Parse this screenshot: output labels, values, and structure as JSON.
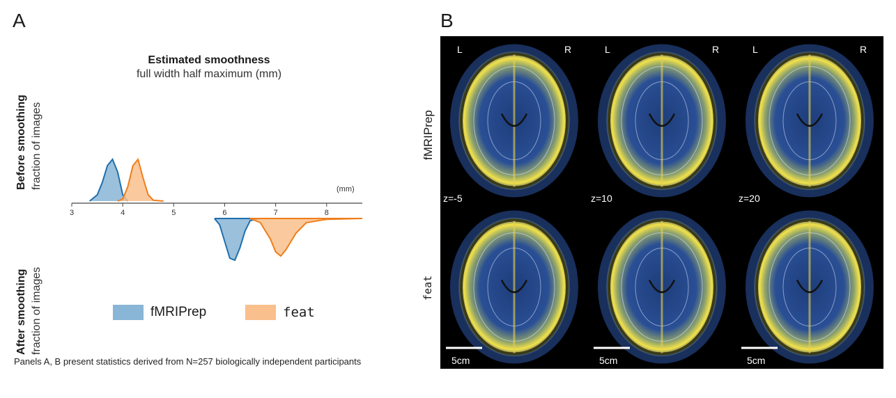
{
  "panel_a": {
    "letter": "A",
    "title": "Estimated smoothness",
    "subtitle": "full width half maximum (mm)",
    "before_label": "Before smoothing",
    "after_label": "After smoothing",
    "yaxis_label": "fraction of images",
    "unit_label": "(mm)",
    "legend": [
      {
        "name": "fMRIPrep",
        "color": "#89b5d6"
      },
      {
        "name": "feat",
        "color": "#f9bf8c"
      }
    ]
  },
  "panel_b": {
    "letter": "B",
    "rows": [
      "fMRIPrep",
      "feat"
    ],
    "slices": [
      "z=-5",
      "z=10",
      "z=20"
    ],
    "left_marker": "L",
    "right_marker": "R",
    "scalebar_label": "5cm"
  },
  "footnote": "Panels A, B present statistics derived from N=257 biologically independent participants",
  "chart_data": {
    "type": "area",
    "xlabel": "",
    "ylabel": "fraction of images",
    "xlim": [
      3,
      8.7
    ],
    "xticks": [
      "3",
      "4",
      "5",
      "6",
      "7",
      "8"
    ],
    "series": [
      {
        "name": "fMRIPrep",
        "panel": "before",
        "color": "#1f6fad",
        "x": [
          3.35,
          3.5,
          3.6,
          3.7,
          3.8,
          3.9,
          4.0,
          4.1
        ],
        "y": [
          0.0,
          0.15,
          0.45,
          0.85,
          1.0,
          0.7,
          0.15,
          0.0
        ]
      },
      {
        "name": "feat",
        "panel": "before",
        "color": "#f07d1a",
        "x": [
          3.9,
          4.0,
          4.1,
          4.2,
          4.3,
          4.4,
          4.5,
          4.6,
          4.8
        ],
        "y": [
          0.0,
          0.05,
          0.35,
          0.85,
          1.0,
          0.55,
          0.15,
          0.02,
          0.0
        ]
      },
      {
        "name": "fMRIPrep",
        "panel": "after",
        "color": "#1f6fad",
        "x": [
          5.8,
          5.9,
          6.0,
          6.1,
          6.2,
          6.3,
          6.4,
          6.5,
          6.7
        ],
        "y": [
          0.0,
          0.15,
          0.55,
          0.95,
          1.0,
          0.7,
          0.3,
          0.05,
          0.0
        ]
      },
      {
        "name": "feat",
        "panel": "after",
        "color": "#f07d1a",
        "x": [
          6.5,
          6.7,
          6.9,
          7.0,
          7.1,
          7.2,
          7.4,
          7.6,
          8.0,
          8.7
        ],
        "y": [
          0.0,
          0.1,
          0.5,
          0.8,
          0.9,
          0.75,
          0.35,
          0.1,
          0.02,
          0.0
        ]
      }
    ]
  }
}
